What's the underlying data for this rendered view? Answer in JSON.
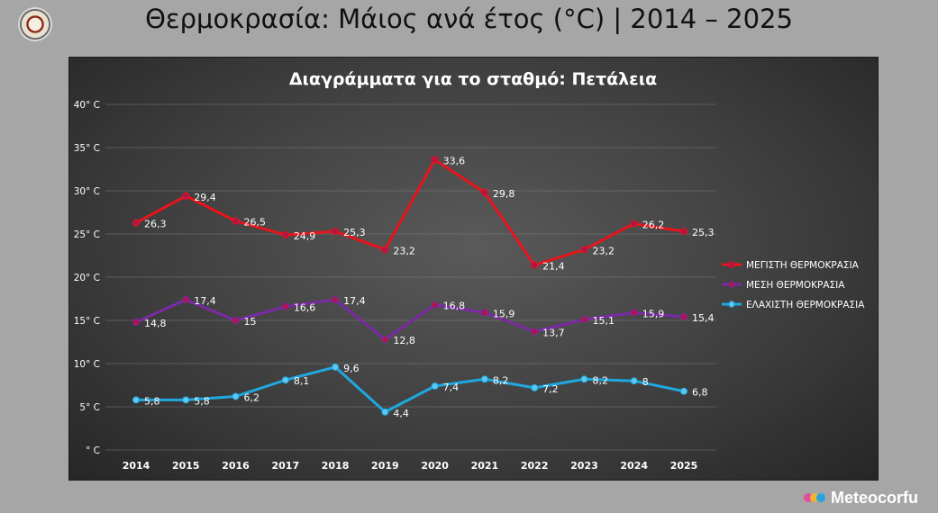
{
  "page": {
    "title": "Θερμοκρασία: Μάιος ανά έτος (°C) | 2014 – 2025",
    "brand": "Meteocorfu",
    "logo_icon": "station-emblem-icon"
  },
  "chart_data": {
    "type": "line",
    "title": "Διαγράμματα για το σταθμό: Πετάλεια",
    "xlabel": "",
    "ylabel": "",
    "categories": [
      "2014",
      "2015",
      "2016",
      "2017",
      "2018",
      "2019",
      "2020",
      "2021",
      "2022",
      "2023",
      "2024",
      "2025"
    ],
    "ylim": [
      0,
      40
    ],
    "yticks": [
      0,
      5,
      10,
      15,
      20,
      25,
      30,
      35,
      40
    ],
    "ytick_labels": [
      "° C",
      "5° C",
      "10° C",
      "15° C",
      "20° C",
      "25° C",
      "30° C",
      "35° C",
      "40° C"
    ],
    "grid": true,
    "legend_position": "right",
    "series": [
      {
        "name": "ΜΕΓΙΣΤΗ ΘΕΡΜΟΚΡΑΣΙΑ",
        "color": "#e8141c",
        "marker_color": "#b3124a",
        "values": [
          26.3,
          29.4,
          26.5,
          24.9,
          25.3,
          23.2,
          33.6,
          29.8,
          21.4,
          23.2,
          26.2,
          25.3
        ],
        "labels": [
          "26,3",
          "29,4",
          "26,5",
          "24,9",
          "25,3",
          "23,2",
          "33,6",
          "29,8",
          "21,4",
          "23,2",
          "26,2",
          "25,3"
        ]
      },
      {
        "name": "ΜΕΣΗ ΘΕΡΜΟΚΡΑΣΙΑ",
        "color": "#7a2aa3",
        "marker_color": "#b3124a",
        "values": [
          14.8,
          17.4,
          15,
          16.6,
          17.4,
          12.8,
          16.8,
          15.9,
          13.7,
          15.1,
          15.9,
          15.4
        ],
        "labels": [
          "14,8",
          "17,4",
          "15",
          "16,6",
          "17,4",
          "12,8",
          "16,8",
          "15,9",
          "13,7",
          "15,1",
          "15,9",
          "15,4"
        ]
      },
      {
        "name": "ΕΛΑΧΙΣΤΗ ΘΕΡΜΟΚΡΑΣΙΑ",
        "color": "#1fa8e0",
        "marker_color": "#5ec8ee",
        "values": [
          5.8,
          5.8,
          6.2,
          8.1,
          9.6,
          4.4,
          7.4,
          8.2,
          7.2,
          8.2,
          8,
          6.8
        ],
        "labels": [
          "5,8",
          "5,8",
          "6,2",
          "8,1",
          "9,6",
          "4,4",
          "7,4",
          "8,2",
          "7,2",
          "8,2",
          "8",
          "6,8"
        ]
      }
    ]
  }
}
